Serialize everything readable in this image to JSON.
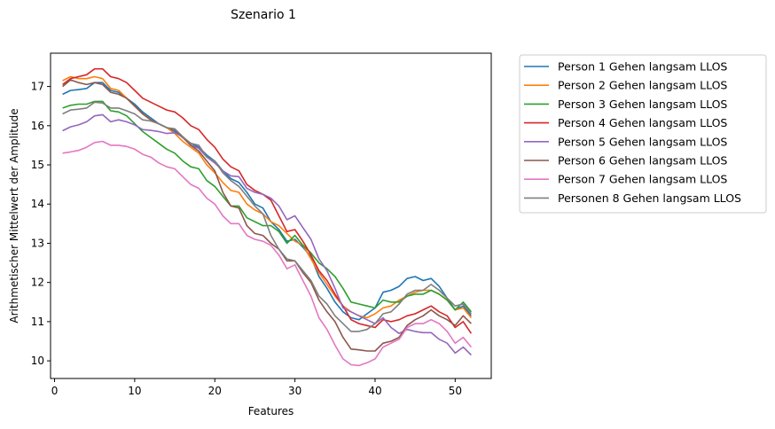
{
  "chart_data": {
    "type": "line",
    "title": "Szenario  1",
    "xlabel": "Features",
    "ylabel": "Arithmetischer Mittelwert der Amplitude",
    "xlim": [
      -0.5,
      54.5
    ],
    "ylim": [
      9.55,
      17.85
    ],
    "xticks": [
      0,
      10,
      20,
      30,
      40,
      50
    ],
    "yticks": [
      10,
      11,
      12,
      13,
      14,
      15,
      16,
      17
    ],
    "grid": false,
    "legend_position": "outside-right",
    "x": [
      1,
      2,
      3,
      4,
      5,
      6,
      7,
      8,
      9,
      10,
      11,
      12,
      13,
      14,
      15,
      16,
      17,
      18,
      19,
      20,
      21,
      22,
      23,
      24,
      25,
      26,
      27,
      28,
      29,
      30,
      31,
      32,
      33,
      34,
      35,
      36,
      37,
      38,
      39,
      40,
      41,
      42,
      43,
      44,
      45,
      46,
      47,
      48,
      49,
      50,
      51,
      52
    ],
    "series": [
      {
        "name": "Person 1 Gehen langsam LLOS",
        "color": "#1f77b4",
        "values": [
          16.8,
          16.9,
          16.92,
          16.95,
          17.1,
          17.1,
          16.9,
          16.85,
          16.7,
          16.55,
          16.35,
          16.2,
          16.05,
          15.95,
          15.85,
          15.7,
          15.55,
          15.45,
          15.25,
          15.1,
          14.85,
          14.65,
          14.55,
          14.3,
          14.0,
          13.9,
          13.55,
          13.35,
          13.05,
          13.1,
          12.9,
          12.65,
          12.15,
          11.85,
          11.5,
          11.25,
          11.1,
          11.05,
          11.2,
          11.35,
          11.75,
          11.8,
          11.9,
          12.1,
          12.15,
          12.05,
          12.1,
          11.9,
          11.6,
          11.3,
          11.4,
          11.15
        ]
      },
      {
        "name": "Person 2 Gehen langsam LLOS",
        "color": "#ff7f0e",
        "values": [
          17.15,
          17.25,
          17.2,
          17.2,
          17.25,
          17.2,
          16.95,
          16.9,
          16.7,
          16.5,
          16.3,
          16.15,
          16.05,
          15.95,
          15.8,
          15.6,
          15.45,
          15.3,
          15.0,
          14.8,
          14.55,
          14.35,
          14.3,
          14.0,
          13.85,
          13.75,
          13.55,
          13.45,
          13.25,
          13.05,
          12.95,
          12.6,
          12.25,
          11.95,
          11.65,
          11.4,
          11.25,
          11.15,
          11.1,
          11.2,
          11.35,
          11.4,
          11.55,
          11.65,
          11.75,
          11.8,
          11.8,
          11.7,
          11.55,
          11.3,
          11.35,
          11.1
        ]
      },
      {
        "name": "Person 3 Gehen langsam LLOS",
        "color": "#2ca02c",
        "values": [
          16.45,
          16.52,
          16.55,
          16.55,
          16.62,
          16.62,
          16.38,
          16.35,
          16.25,
          16.05,
          15.85,
          15.7,
          15.55,
          15.4,
          15.3,
          15.1,
          14.95,
          14.9,
          14.6,
          14.45,
          14.2,
          13.95,
          13.95,
          13.65,
          13.55,
          13.45,
          13.45,
          13.3,
          13.0,
          13.2,
          12.95,
          12.75,
          12.5,
          12.35,
          12.15,
          11.85,
          11.5,
          11.45,
          11.4,
          11.35,
          11.55,
          11.5,
          11.5,
          11.65,
          11.7,
          11.7,
          11.8,
          11.7,
          11.55,
          11.3,
          11.5,
          11.25
        ]
      },
      {
        "name": "Person 4 Gehen langsam LLOS",
        "color": "#d62728",
        "values": [
          17.05,
          17.2,
          17.25,
          17.3,
          17.45,
          17.45,
          17.25,
          17.2,
          17.1,
          16.9,
          16.7,
          16.6,
          16.5,
          16.4,
          16.35,
          16.2,
          16.0,
          15.9,
          15.65,
          15.45,
          15.15,
          14.95,
          14.85,
          14.5,
          14.35,
          14.25,
          14.1,
          13.7,
          13.3,
          13.35,
          13.05,
          12.7,
          12.3,
          12.05,
          11.7,
          11.4,
          11.05,
          10.95,
          10.9,
          10.85,
          11.05,
          11.0,
          11.05,
          11.15,
          11.2,
          11.3,
          11.4,
          11.25,
          11.15,
          10.85,
          11.0,
          10.7
        ]
      },
      {
        "name": "Person 5 Gehen langsam LLOS",
        "color": "#9467bd",
        "values": [
          15.87,
          15.97,
          16.02,
          16.1,
          16.25,
          16.28,
          16.1,
          16.15,
          16.1,
          16.02,
          15.9,
          15.88,
          15.85,
          15.8,
          15.82,
          15.72,
          15.5,
          15.42,
          15.2,
          15.05,
          14.85,
          14.72,
          14.7,
          14.4,
          14.3,
          14.25,
          14.15,
          13.95,
          13.6,
          13.7,
          13.4,
          13.1,
          12.6,
          12.3,
          11.85,
          11.35,
          11.25,
          11.15,
          11.05,
          10.95,
          11.1,
          10.85,
          10.7,
          10.8,
          10.75,
          10.72,
          10.72,
          10.55,
          10.45,
          10.2,
          10.35,
          10.15
        ]
      },
      {
        "name": "Person 6 Gehen langsam LLOS",
        "color": "#8c564b",
        "values": [
          17.0,
          17.17,
          17.1,
          17.05,
          17.1,
          17.05,
          16.85,
          16.8,
          16.7,
          16.5,
          16.3,
          16.15,
          16.05,
          15.95,
          15.9,
          15.7,
          15.5,
          15.35,
          15.1,
          14.85,
          14.3,
          13.95,
          13.9,
          13.45,
          13.25,
          13.2,
          13.0,
          12.85,
          12.55,
          12.55,
          12.25,
          12.0,
          11.55,
          11.25,
          11.0,
          10.6,
          10.3,
          10.28,
          10.25,
          10.25,
          10.45,
          10.5,
          10.6,
          10.9,
          11.05,
          11.15,
          11.3,
          11.15,
          11.05,
          10.9,
          11.15,
          10.95
        ]
      },
      {
        "name": "Person 7 Gehen langsam LLOS",
        "color": "#e377c2",
        "values": [
          15.3,
          15.33,
          15.37,
          15.45,
          15.57,
          15.6,
          15.5,
          15.5,
          15.47,
          15.4,
          15.27,
          15.2,
          15.05,
          14.95,
          14.9,
          14.7,
          14.5,
          14.4,
          14.15,
          14.0,
          13.7,
          13.5,
          13.5,
          13.2,
          13.1,
          13.05,
          12.95,
          12.7,
          12.35,
          12.45,
          12.05,
          11.65,
          11.1,
          10.8,
          10.4,
          10.05,
          9.9,
          9.88,
          9.95,
          10.05,
          10.35,
          10.45,
          10.55,
          10.85,
          10.95,
          10.95,
          11.05,
          10.95,
          10.75,
          10.45,
          10.6,
          10.35
        ]
      },
      {
        "name": "Personen 8 Gehen langsam LLOS",
        "color": "#7f7f7f",
        "values": [
          16.3,
          16.4,
          16.42,
          16.45,
          16.6,
          16.58,
          16.45,
          16.45,
          16.38,
          16.3,
          16.15,
          16.12,
          16.05,
          15.95,
          15.92,
          15.72,
          15.55,
          15.5,
          15.2,
          15.1,
          14.8,
          14.6,
          14.45,
          14.2,
          13.95,
          13.75,
          13.2,
          12.85,
          12.6,
          12.55,
          12.3,
          12.05,
          11.65,
          11.45,
          11.15,
          10.95,
          10.75,
          10.75,
          10.8,
          10.95,
          11.2,
          11.25,
          11.45,
          11.7,
          11.8,
          11.8,
          11.95,
          11.8,
          11.6,
          11.4,
          11.45,
          11.2
        ]
      }
    ]
  }
}
